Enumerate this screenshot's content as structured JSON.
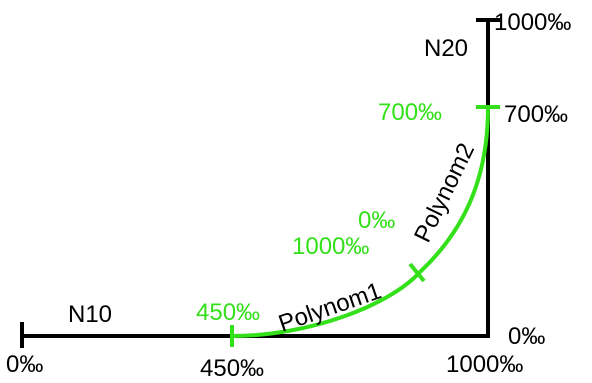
{
  "colors": {
    "axis": "#000000",
    "curve": "#33e01a"
  },
  "roads": {
    "n10": {
      "name": "N10",
      "start_label": "0‰",
      "mid_label": "450‰",
      "end_label": "1000‰"
    },
    "n20": {
      "name": "N20",
      "start_label": "0‰",
      "mid_label": "700‰",
      "end_label": "1000‰"
    }
  },
  "transition": {
    "polynom1": {
      "name": "Polynom1",
      "start_label": "450‰",
      "end_label": "1000‰"
    },
    "polynom2": {
      "name": "Polynom2",
      "start_label": "0‰",
      "end_label": "700‰"
    }
  }
}
